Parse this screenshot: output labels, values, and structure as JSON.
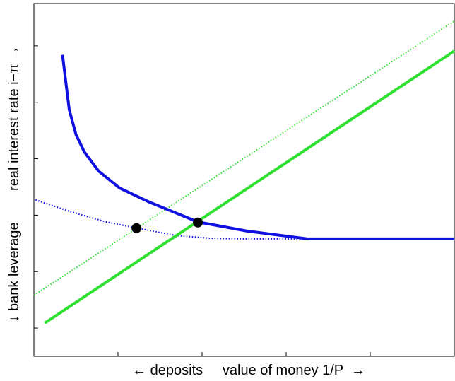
{
  "chart_data": {
    "type": "line",
    "x_label": "← deposits     value of money 1/P  →",
    "y_label": "↓ bank leverage        real interest rate i−π →",
    "xlim": [
      0,
      5
    ],
    "ylim": [
      0,
      6.25
    ],
    "xticks": [
      1,
      2,
      3,
      4
    ],
    "yticks": [
      0.5,
      1.5,
      2.5,
      3.5,
      4.5,
      5.5
    ],
    "series": [
      {
        "color": "#1010e0",
        "style": "dotted",
        "x": [
          0.02,
          0.44,
          0.86,
          1.23,
          1.69,
          2.11,
          2.53,
          3.26
        ],
        "values": [
          2.77,
          2.56,
          2.38,
          2.27,
          2.14,
          2.09,
          2.08,
          2.08
        ]
      },
      {
        "color": "#30e030",
        "style": "dotted",
        "x": [
          0,
          5
        ],
        "values": [
          1.08,
          5.94
        ]
      },
      {
        "color": "#1010e0",
        "style": "solid",
        "x": [
          0.34,
          0.42,
          0.5,
          0.6,
          0.77,
          1.02,
          1.36,
          1.95,
          2.53,
          3.26,
          5
        ],
        "values": [
          5.34,
          4.37,
          3.93,
          3.62,
          3.28,
          2.98,
          2.74,
          2.38,
          2.22,
          2.08,
          2.08
        ]
      },
      {
        "color": "#30e030",
        "style": "solid",
        "x": [
          0.13,
          5
        ],
        "values": [
          0.59,
          5.41
        ]
      },
      {
        "color": "#000000",
        "style": "markers",
        "x": [
          1.22,
          1.95
        ],
        "values": [
          2.27,
          2.37
        ]
      }
    ]
  }
}
